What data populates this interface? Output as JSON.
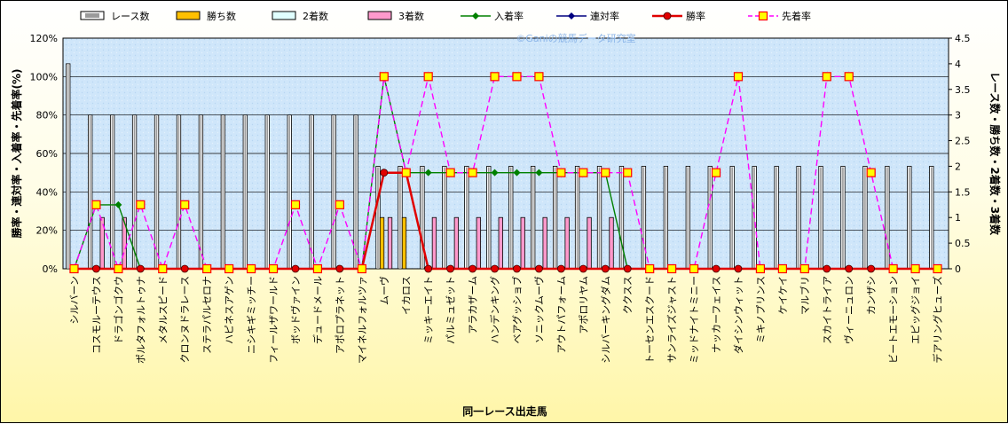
{
  "chart_data": {
    "type": "bar",
    "title": "",
    "watermark": "©Ganiの競馬データ研究室",
    "xlabel": "同一レース出走馬",
    "ylabel_left": "勝率・連対率・入着率・先着率(%)",
    "ylabel_right": "レース数・勝ち数・2着数・3着数",
    "ylim_left": [
      0,
      120
    ],
    "ylim_right": [
      0,
      4.5
    ],
    "left_ticks": [
      "0%",
      "20%",
      "40%",
      "60%",
      "80%",
      "100%",
      "120%"
    ],
    "right_ticks": [
      "0",
      "0.5",
      "1",
      "1.5",
      "2",
      "2.5",
      "3",
      "3.5",
      "4",
      "4.5"
    ],
    "grid": true,
    "legend_position": "top",
    "categories": [
      "シルバーン",
      "コスモルーテウス",
      "ドラゴンゴクウ",
      "ポルタフォルトゥナ",
      "メタルスピード",
      "クロンヌドラレース",
      "ステラパルセロナ",
      "ハピネスアゲン",
      "ニシキギミッチー",
      "フィールザワールド",
      "ボッドヴァイン",
      "デュードメール",
      "アポロプラネット",
      "マイネルフォルツァ",
      "ムーヴ",
      "イカロス",
      "ミッキーエイト",
      "パルミュゼット",
      "アラカザーム",
      "ハンデンキング",
      "ベアグッショブ",
      "ソニックムーヴ",
      "アウトパフォーム",
      "アポロリヤム",
      "シルバーキングダム",
      "ククスス",
      "トーセンエスクード",
      "サンライズジャスト",
      "ミッドナイトミニー",
      "ナッカーフェイス",
      "ダイシンウィット",
      "ミキノプリンス",
      "ケイケイ",
      "マルブリ",
      "スカイトライア",
      "ヴィーニュロン",
      "カンザシ",
      "ビートエモーション",
      "エピッグジョイ",
      "デアリングヒューズ"
    ],
    "series": [
      {
        "name": "レース数",
        "axis": "right",
        "kind": "bar",
        "color": "#ffffff",
        "values": [
          4,
          3,
          3,
          3,
          3,
          3,
          3,
          3,
          3,
          3,
          3,
          3,
          3,
          3,
          2,
          2,
          2,
          2,
          2,
          2,
          2,
          2,
          2,
          2,
          2,
          2,
          2,
          2,
          2,
          2,
          2,
          2,
          2,
          2,
          2,
          2,
          2,
          2,
          2,
          2
        ]
      },
      {
        "name": "勝ち数",
        "axis": "right",
        "kind": "bar",
        "color": "#ffc000",
        "values": [
          0,
          0,
          0,
          0,
          0,
          0,
          0,
          0,
          0,
          0,
          0,
          0,
          0,
          0,
          1,
          1,
          0,
          0,
          0,
          0,
          0,
          0,
          0,
          0,
          0,
          0,
          0,
          0,
          0,
          0,
          0,
          0,
          0,
          0,
          0,
          0,
          0,
          0,
          0,
          0
        ]
      },
      {
        "name": "2着数",
        "axis": "right",
        "kind": "bar",
        "color": "#e0ffff",
        "values": [
          0,
          0,
          0,
          0,
          0,
          0,
          0,
          0,
          0,
          0,
          0,
          0,
          0,
          0,
          0,
          0,
          0,
          0,
          0,
          0,
          0,
          0,
          0,
          0,
          0,
          0,
          0,
          0,
          0,
          0,
          0,
          0,
          0,
          0,
          0,
          0,
          0,
          0,
          0,
          0
        ]
      },
      {
        "name": "3着数",
        "axis": "right",
        "kind": "bar",
        "color": "#ff99cc",
        "values": [
          0,
          1,
          1,
          0,
          0,
          0,
          0,
          0,
          0,
          0,
          0,
          0,
          0,
          0,
          1,
          0,
          1,
          1,
          1,
          1,
          1,
          1,
          1,
          1,
          1,
          0,
          0,
          0,
          0,
          0,
          0,
          0,
          0,
          0,
          0,
          0,
          0,
          0,
          0,
          0
        ]
      },
      {
        "name": "入着率",
        "axis": "left",
        "kind": "line",
        "color": "#008000",
        "marker": "diamond",
        "values": [
          0,
          33.3,
          33.3,
          0,
          0,
          0,
          0,
          0,
          0,
          0,
          0,
          0,
          0,
          0,
          100,
          50,
          50,
          50,
          50,
          50,
          50,
          50,
          50,
          50,
          50,
          0,
          0,
          0,
          0,
          0,
          0,
          0,
          0,
          0,
          0,
          0,
          0,
          0,
          0,
          0
        ]
      },
      {
        "name": "連対率",
        "axis": "left",
        "kind": "line",
        "color": "#000080",
        "marker": "diamond",
        "values": [
          0,
          0,
          0,
          0,
          0,
          0,
          0,
          0,
          0,
          0,
          0,
          0,
          0,
          0,
          50,
          50,
          0,
          0,
          0,
          0,
          0,
          0,
          0,
          0,
          0,
          0,
          0,
          0,
          0,
          0,
          0,
          0,
          0,
          0,
          0,
          0,
          0,
          0,
          0,
          0
        ]
      },
      {
        "name": "勝率",
        "axis": "left",
        "kind": "line",
        "color": "#e00000",
        "marker": "circle",
        "values": [
          0,
          0,
          0,
          0,
          0,
          0,
          0,
          0,
          0,
          0,
          0,
          0,
          0,
          0,
          50,
          50,
          0,
          0,
          0,
          0,
          0,
          0,
          0,
          0,
          0,
          0,
          0,
          0,
          0,
          0,
          0,
          0,
          0,
          0,
          0,
          0,
          0,
          0,
          0,
          0
        ]
      },
      {
        "name": "先着率",
        "axis": "left",
        "kind": "line",
        "color": "#ff00ff",
        "marker": "square",
        "dashed": true,
        "values": [
          0,
          33.3,
          0,
          33.3,
          0,
          33.3,
          0,
          0,
          0,
          0,
          33.3,
          0,
          33.3,
          0,
          100,
          50,
          100,
          50,
          50,
          100,
          100,
          100,
          50,
          50,
          50,
          50,
          0,
          0,
          0,
          50,
          100,
          0,
          0,
          0,
          100,
          100,
          50,
          0,
          0,
          0
        ]
      }
    ]
  }
}
